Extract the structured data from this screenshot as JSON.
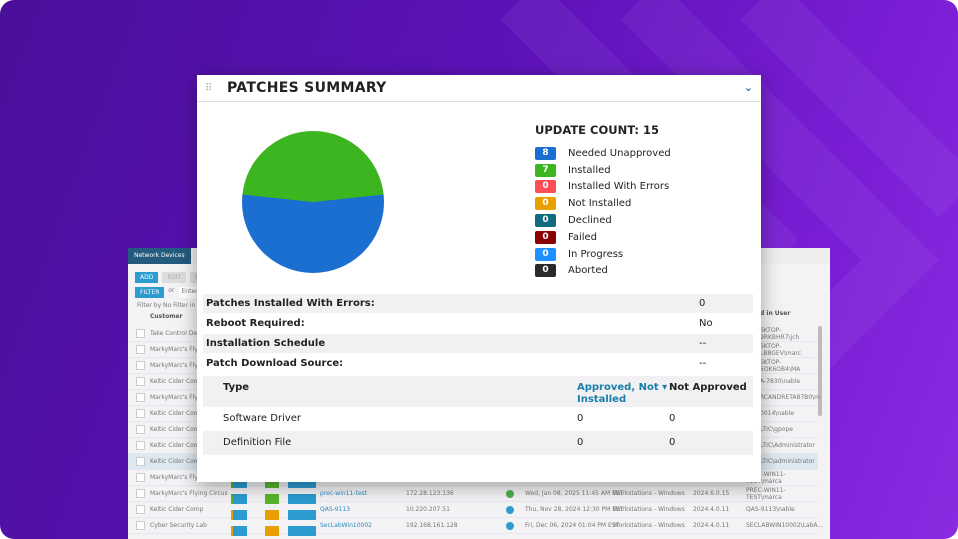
{
  "background_app": {
    "tabs": [
      "Network Devices",
      "M"
    ],
    "buttons": [
      "ADD",
      "EDIT",
      "DEL"
    ],
    "filter_label": "FILTER",
    "filter_or": "or",
    "filter_placeholder": "Enter s",
    "filter_by": "Filter by No Filter in all",
    "columns": {
      "customer": "Customer",
      "logged_in_user": "d in User"
    },
    "rows": [
      {
        "customer": "Take Control Dev T",
        "user": "SKTOP-9RKBHR7\\jch"
      },
      {
        "customer": "MarkyMarc's Flying",
        "user": "SKTOP-LB8GEV\\marc"
      },
      {
        "customer": "MarkyMarc's Flying",
        "user": "SKTOP-5OK6OB4\\MA"
      },
      {
        "customer": "Keltic Cider Comp",
        "user": "A-7830\\nable"
      },
      {
        "customer": "MarkyMarc's Flying",
        "user": "RCANDRETA87B0\\m"
      },
      {
        "customer": "Keltic Cider Comp",
        "user": "0014\\nable"
      },
      {
        "customer": "Keltic Cider Comp",
        "user": "LTIC\\gpope"
      },
      {
        "customer": "Keltic Cider Comp",
        "user": "LTIC\\Administrator"
      },
      {
        "customer": "Keltic Cider Comp",
        "user": "LTIC\\administrator"
      },
      {
        "customer": "MarkyMarc's Flying Circus",
        "device": "prec-win11-test",
        "ip": "172.28.123.136",
        "date": "Wed, Jan 08, 2025 11:45 AM EST",
        "class": "Workstations - Windows",
        "version": "2024.6.0.15",
        "user": "PREC-WIN11-TEST\\marca"
      },
      {
        "customer": "MarkyMarc's Flying Circus",
        "device": "prec-win11-test",
        "ip": "172.28.123.136",
        "date": "Wed, Jan 08, 2025 11:45 AM EST",
        "class": "Workstations - Windows",
        "version": "2024.6.0.15",
        "user": "PREC-WIN11-TEST\\marca"
      },
      {
        "customer": "Keltic Cider Comp",
        "device": "QAS-9113",
        "ip": "10.220.207.51",
        "date": "Thu, Nov 28, 2024 12:30 PM EST",
        "class": "Workstations - Windows",
        "version": "2024.4.0.11",
        "user": "QAS-9113\\nable"
      },
      {
        "customer": "Cyber Security Lab",
        "device": "SecLabWin10002",
        "ip": "192.168.161.128",
        "date": "Fri, Dec 06, 2024 01:04 PM EST",
        "class": "Workstations - Windows",
        "version": "2024.4.0.11",
        "user": "SECLABWIN10002\\LabA..."
      }
    ]
  },
  "widget": {
    "title": "PATCHES SUMMARY",
    "update_count_label": "UPDATE COUNT: 15",
    "legend": [
      {
        "count": "8",
        "label": "Needed Unapproved",
        "color": "#1a6fd0"
      },
      {
        "count": "7",
        "label": "Installed",
        "color": "#3cb521"
      },
      {
        "count": "0",
        "label": "Installed With Errors",
        "color": "#ff4d55"
      },
      {
        "count": "0",
        "label": "Not Installed",
        "color": "#e8a000"
      },
      {
        "count": "0",
        "label": "Declined",
        "color": "#106b7d"
      },
      {
        "count": "0",
        "label": "Failed",
        "color": "#8b0000"
      },
      {
        "count": "0",
        "label": "In Progress",
        "color": "#1e90ff"
      },
      {
        "count": "0",
        "label": "Aborted",
        "color": "#2a2a2a"
      }
    ],
    "info": [
      {
        "label": "Patches Installed With Errors:",
        "value": "0"
      },
      {
        "label": "Reboot Required:",
        "value": "No"
      },
      {
        "label": "Installation Schedule",
        "value": "--"
      },
      {
        "label": "Patch Download Source:",
        "value": "--"
      }
    ],
    "table": {
      "headers": {
        "type": "Type",
        "approved": "Approved, Not ▾",
        "approved2": "Installed",
        "not_approved": "Not Approved"
      },
      "rows": [
        {
          "type": "Software Driver",
          "approved": "0",
          "not_approved": "0"
        },
        {
          "type": "Definition File",
          "approved": "0",
          "not_approved": "0"
        }
      ]
    }
  }
}
